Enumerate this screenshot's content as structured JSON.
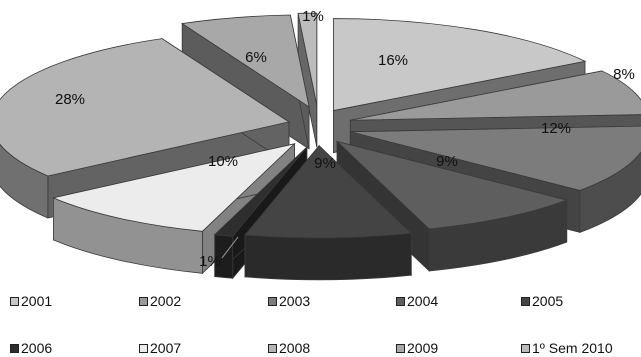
{
  "chart_data": {
    "type": "pie",
    "style": "3d-exploded",
    "categories": [
      "2001",
      "2002",
      "2003",
      "2004",
      "2005",
      "2006",
      "2007",
      "2008",
      "2009",
      "1º Sem 2010"
    ],
    "values": [
      16,
      8,
      12,
      9,
      9,
      1,
      10,
      28,
      6,
      1
    ],
    "labels": [
      "16%",
      "8%",
      "12%",
      "9%",
      "9%",
      "1%",
      "10%",
      "28%",
      "6%",
      "1%"
    ],
    "colors": [
      "#c8c8c8",
      "#9a9a9a",
      "#7c7c7c",
      "#5e5e5e",
      "#444444",
      "#2e2e2e",
      "#ececec",
      "#b4b4b4",
      "#a8a8a8",
      "#bcbcbc"
    ],
    "legend_position": "bottom"
  }
}
